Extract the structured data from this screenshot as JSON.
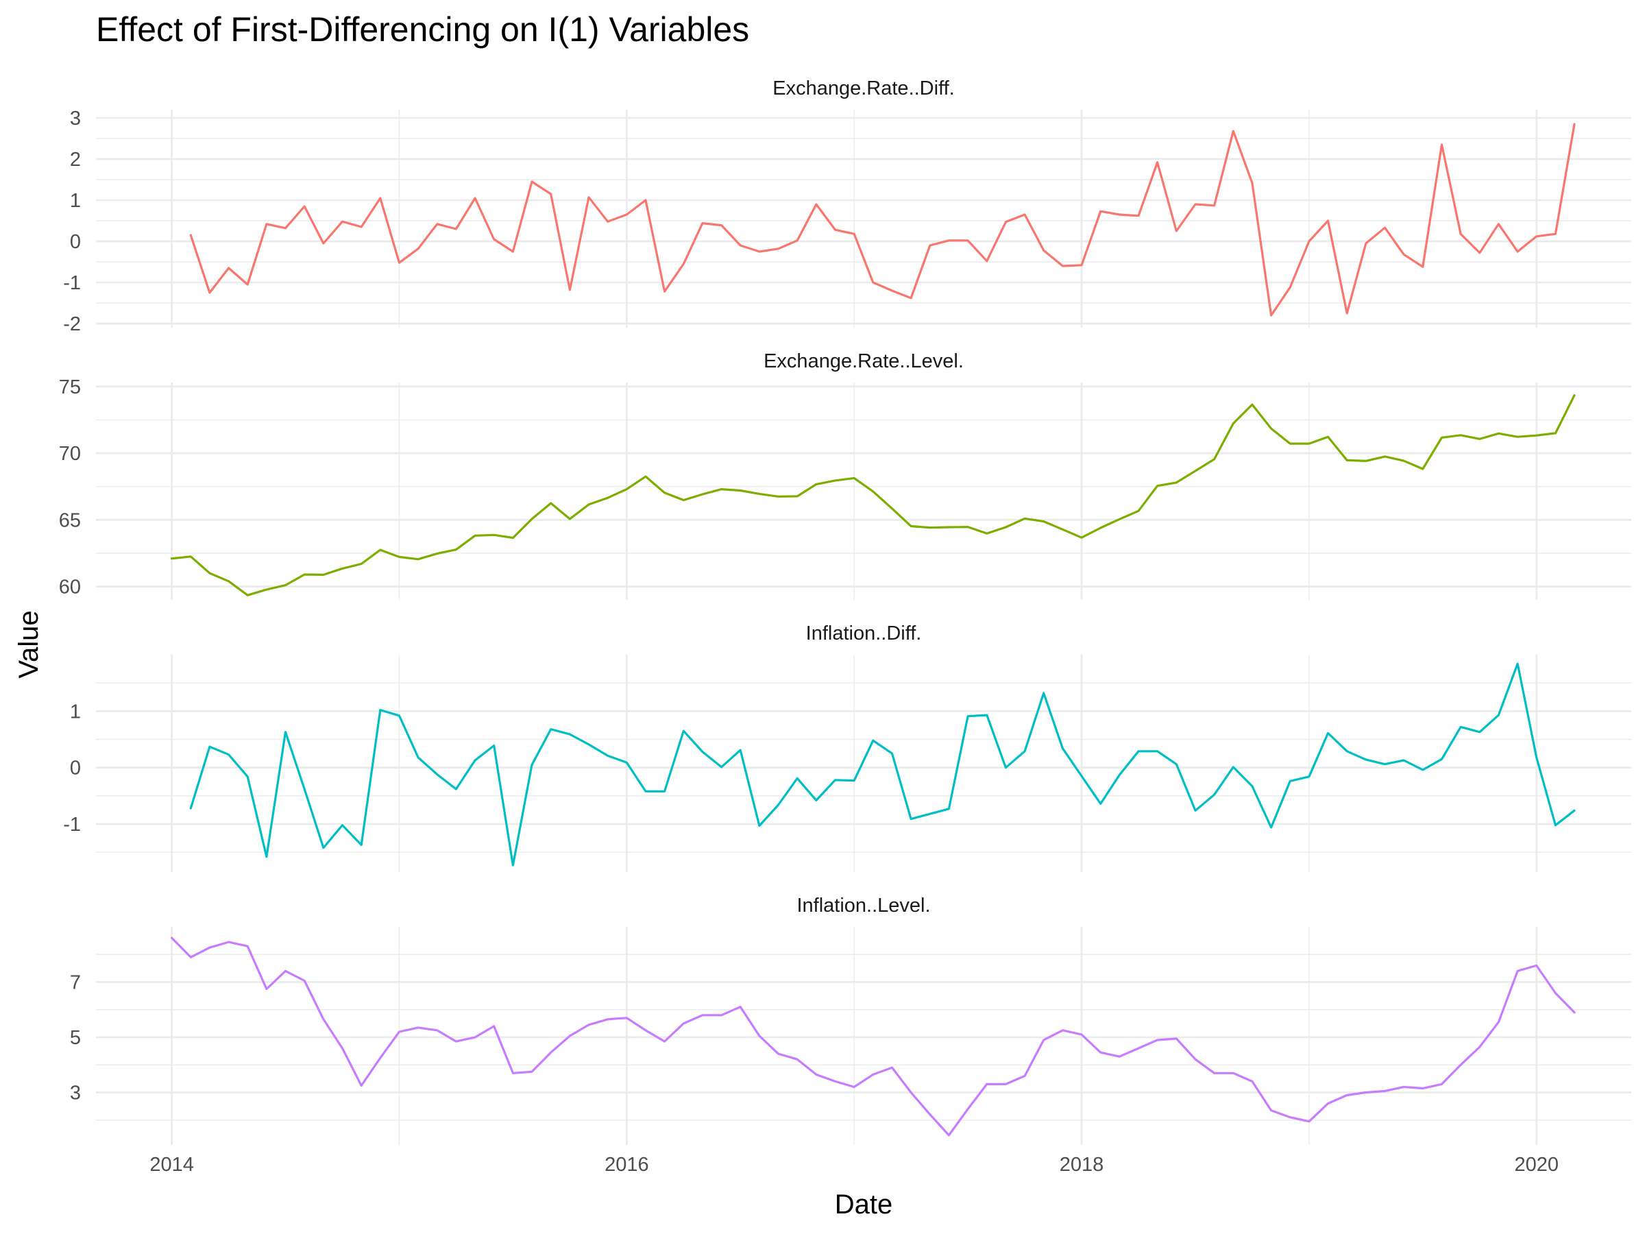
{
  "chart_data": {
    "type": "line",
    "title": "Effect of First-Differencing on I(1) Variables",
    "xlabel": "Date",
    "ylabel": "Value",
    "x_ticks": [
      "2014",
      "2016",
      "2018",
      "2020"
    ],
    "x_start": "2014-01",
    "x_range": [
      "2013-09",
      "2020-06"
    ],
    "grid": true,
    "legend": "none",
    "panels": [
      {
        "name": "Exchange.Rate..Diff.",
        "color": "#F8766D",
        "ylim": [
          -2.1,
          3.2
        ],
        "y_ticks": [
          -2,
          -1,
          0,
          1,
          2,
          3
        ],
        "start_index": 1,
        "values": [
          0.15,
          -1.25,
          -0.65,
          -1.05,
          0.42,
          0.32,
          0.85,
          -0.05,
          0.48,
          0.35,
          1.05,
          -0.52,
          -0.18,
          0.42,
          0.3,
          1.05,
          0.05,
          -0.25,
          1.45,
          1.15,
          -1.18,
          1.07,
          0.48,
          0.65,
          1.0,
          -1.22,
          -0.55,
          0.44,
          0.39,
          -0.1,
          -0.25,
          -0.18,
          0.02,
          0.9,
          0.28,
          0.18,
          -1.0,
          -1.2,
          -1.38,
          -0.1,
          0.02,
          0.02,
          -0.48,
          0.47,
          0.65,
          -0.22,
          -0.6,
          -0.58,
          0.73,
          0.65,
          0.62,
          1.92,
          0.25,
          0.9,
          0.87,
          2.68,
          1.42,
          -1.8,
          -1.12,
          0.0,
          0.5,
          -1.75,
          -0.05,
          0.33,
          -0.32,
          -0.62,
          2.35,
          0.18,
          -0.28,
          0.42,
          -0.25,
          0.12,
          0.18,
          2.85
        ]
      },
      {
        "name": "Exchange.Rate..Level.",
        "color": "#7CAE00",
        "ylim": [
          59.0,
          75.3
        ],
        "y_ticks": [
          60,
          65,
          70,
          75
        ],
        "start_index": 0,
        "values": [
          62.1,
          62.25,
          61.0,
          60.4,
          59.35,
          59.77,
          60.1,
          60.9,
          60.88,
          61.35,
          61.7,
          62.75,
          62.22,
          62.05,
          62.47,
          62.77,
          63.82,
          63.87,
          63.65,
          65.07,
          66.25,
          65.07,
          66.15,
          66.65,
          67.3,
          68.25,
          67.03,
          66.48,
          66.92,
          67.3,
          67.2,
          66.95,
          66.75,
          66.77,
          67.67,
          67.95,
          68.13,
          67.13,
          65.85,
          64.53,
          64.42,
          64.45,
          64.47,
          63.98,
          64.45,
          65.1,
          64.88,
          64.28,
          63.67,
          64.4,
          65.05,
          65.67,
          67.55,
          67.8,
          68.67,
          69.55,
          72.23,
          73.65,
          71.85,
          70.72,
          70.72,
          71.22,
          69.47,
          69.42,
          69.75,
          69.43,
          68.82,
          71.17,
          71.35,
          71.07,
          71.48,
          71.23,
          71.33,
          71.5,
          74.35
        ]
      },
      {
        "name": "Inflation..Diff.",
        "color": "#00BFC4",
        "ylim": [
          -1.85,
          2.0
        ],
        "y_ticks": [
          -1,
          0,
          1
        ],
        "start_index": 1,
        "values": [
          -0.72,
          0.37,
          0.23,
          -0.16,
          -1.58,
          0.63,
          -0.38,
          -1.42,
          -1.02,
          -1.37,
          1.02,
          0.92,
          0.18,
          -0.12,
          -0.38,
          0.13,
          0.39,
          -1.73,
          0.05,
          0.68,
          0.59,
          0.41,
          0.21,
          0.09,
          -0.42,
          -0.42,
          0.65,
          0.28,
          0.01,
          0.31,
          -1.03,
          -0.66,
          -0.19,
          -0.58,
          -0.22,
          -0.23,
          0.48,
          0.25,
          -0.91,
          -0.82,
          -0.73,
          0.91,
          0.93,
          0.0,
          0.29,
          1.32,
          0.34,
          -0.15,
          -0.64,
          -0.13,
          0.29,
          0.29,
          0.06,
          -0.76,
          -0.48,
          0.01,
          -0.33,
          -1.06,
          -0.24,
          -0.16,
          0.61,
          0.29,
          0.14,
          0.06,
          0.13,
          -0.04,
          0.15,
          0.72,
          0.63,
          0.93,
          1.84,
          0.18,
          -1.02,
          -0.76
        ]
      },
      {
        "name": "Inflation..Level.",
        "color": "#C77CFF",
        "ylim": [
          1.1,
          9.0
        ],
        "y_ticks": [
          3,
          5,
          7
        ],
        "start_index": 0,
        "values": [
          8.6,
          7.9,
          8.25,
          8.45,
          8.3,
          6.75,
          7.4,
          7.05,
          5.65,
          4.6,
          3.25,
          4.25,
          5.2,
          5.35,
          5.25,
          4.85,
          5.0,
          5.4,
          3.7,
          3.75,
          4.45,
          5.05,
          5.45,
          5.65,
          5.7,
          5.25,
          4.85,
          5.5,
          5.8,
          5.8,
          6.1,
          5.05,
          4.4,
          4.2,
          3.65,
          3.4,
          3.2,
          3.65,
          3.9,
          3.0,
          2.2,
          1.45,
          2.4,
          3.3,
          3.3,
          3.6,
          4.9,
          5.25,
          5.1,
          4.45,
          4.3,
          4.6,
          4.9,
          4.95,
          4.2,
          3.7,
          3.7,
          3.4,
          2.35,
          2.1,
          1.95,
          2.6,
          2.9,
          3.0,
          3.05,
          3.2,
          3.15,
          3.3,
          4.0,
          4.65,
          5.55,
          7.4,
          7.6,
          6.6,
          5.9
        ]
      }
    ]
  }
}
